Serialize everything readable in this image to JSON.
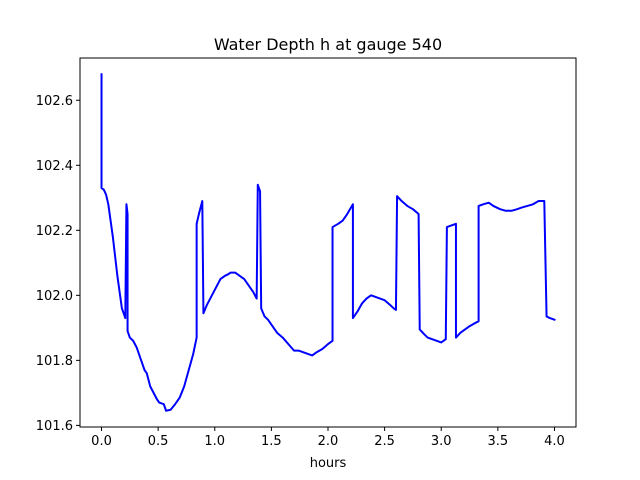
{
  "chart_data": {
    "type": "line",
    "title": "Water Depth h at gauge 540",
    "xlabel": "hours",
    "ylabel": "",
    "xlim": [
      -0.19,
      4.19
    ],
    "ylim": [
      101.595,
      102.73
    ],
    "grid": false,
    "legend": "none",
    "xticks": [
      {
        "value": 0.0,
        "label": "0.0"
      },
      {
        "value": 0.5,
        "label": "0.5"
      },
      {
        "value": 1.0,
        "label": "1.0"
      },
      {
        "value": 1.5,
        "label": "1.5"
      },
      {
        "value": 2.0,
        "label": "2.0"
      },
      {
        "value": 2.5,
        "label": "2.5"
      },
      {
        "value": 3.0,
        "label": "3.0"
      },
      {
        "value": 3.5,
        "label": "3.5"
      },
      {
        "value": 4.0,
        "label": "4.0"
      }
    ],
    "yticks": [
      {
        "value": 101.6,
        "label": "101.6"
      },
      {
        "value": 101.8,
        "label": "101.8"
      },
      {
        "value": 102.0,
        "label": "102.0"
      },
      {
        "value": 102.2,
        "label": "102.2"
      },
      {
        "value": 102.4,
        "label": "102.4"
      },
      {
        "value": 102.6,
        "label": "102.6"
      }
    ],
    "series": [
      {
        "color": "#0000ff",
        "points": [
          [
            0.0,
            102.68
          ],
          [
            0.0,
            102.33
          ],
          [
            0.02,
            102.325
          ],
          [
            0.04,
            102.31
          ],
          [
            0.06,
            102.28
          ],
          [
            0.08,
            102.23
          ],
          [
            0.1,
            102.18
          ],
          [
            0.12,
            102.12
          ],
          [
            0.14,
            102.06
          ],
          [
            0.16,
            102.01
          ],
          [
            0.18,
            101.96
          ],
          [
            0.21,
            101.93
          ],
          [
            0.22,
            102.28
          ],
          [
            0.23,
            102.25
          ],
          [
            0.23,
            101.89
          ],
          [
            0.25,
            101.87
          ],
          [
            0.28,
            101.86
          ],
          [
            0.31,
            101.84
          ],
          [
            0.33,
            101.82
          ],
          [
            0.36,
            101.79
          ],
          [
            0.38,
            101.77
          ],
          [
            0.4,
            101.76
          ],
          [
            0.43,
            101.72
          ],
          [
            0.46,
            101.7
          ],
          [
            0.49,
            101.68
          ],
          [
            0.51,
            101.67
          ],
          [
            0.55,
            101.665
          ],
          [
            0.57,
            101.645
          ],
          [
            0.61,
            101.648
          ],
          [
            0.65,
            101.665
          ],
          [
            0.69,
            101.685
          ],
          [
            0.73,
            101.72
          ],
          [
            0.77,
            101.77
          ],
          [
            0.81,
            101.82
          ],
          [
            0.84,
            101.87
          ],
          [
            0.84,
            102.22
          ],
          [
            0.86,
            102.25
          ],
          [
            0.89,
            102.29
          ],
          [
            0.9,
            101.945
          ],
          [
            0.93,
            101.97
          ],
          [
            0.96,
            101.99
          ],
          [
            0.99,
            102.01
          ],
          [
            1.02,
            102.03
          ],
          [
            1.05,
            102.05
          ],
          [
            1.09,
            102.06
          ],
          [
            1.12,
            102.065
          ],
          [
            1.14,
            102.07
          ],
          [
            1.18,
            102.07
          ],
          [
            1.22,
            102.06
          ],
          [
            1.26,
            102.05
          ],
          [
            1.3,
            102.03
          ],
          [
            1.34,
            102.01
          ],
          [
            1.37,
            101.99
          ],
          [
            1.38,
            102.34
          ],
          [
            1.4,
            102.32
          ],
          [
            1.41,
            101.96
          ],
          [
            1.44,
            101.935
          ],
          [
            1.47,
            101.925
          ],
          [
            1.5,
            101.91
          ],
          [
            1.55,
            101.885
          ],
          [
            1.6,
            101.87
          ],
          [
            1.65,
            101.85
          ],
          [
            1.7,
            101.83
          ],
          [
            1.74,
            101.83
          ],
          [
            1.78,
            101.825
          ],
          [
            1.82,
            101.82
          ],
          [
            1.86,
            101.815
          ],
          [
            1.9,
            101.825
          ],
          [
            1.95,
            101.835
          ],
          [
            2.0,
            101.85
          ],
          [
            2.04,
            101.86
          ],
          [
            2.04,
            102.21
          ],
          [
            2.09,
            102.22
          ],
          [
            2.13,
            102.23
          ],
          [
            2.17,
            102.25
          ],
          [
            2.22,
            102.28
          ],
          [
            2.22,
            101.93
          ],
          [
            2.26,
            101.95
          ],
          [
            2.3,
            101.975
          ],
          [
            2.34,
            101.99
          ],
          [
            2.38,
            102.0
          ],
          [
            2.42,
            101.995
          ],
          [
            2.46,
            101.99
          ],
          [
            2.5,
            101.985
          ],
          [
            2.55,
            101.97
          ],
          [
            2.58,
            101.96
          ],
          [
            2.6,
            101.955
          ],
          [
            2.61,
            102.305
          ],
          [
            2.65,
            102.29
          ],
          [
            2.7,
            102.275
          ],
          [
            2.75,
            102.265
          ],
          [
            2.8,
            102.25
          ],
          [
            2.81,
            101.895
          ],
          [
            2.85,
            101.88
          ],
          [
            2.88,
            101.87
          ],
          [
            2.92,
            101.865
          ],
          [
            2.96,
            101.86
          ],
          [
            3.0,
            101.855
          ],
          [
            3.04,
            101.865
          ],
          [
            3.05,
            102.21
          ],
          [
            3.09,
            102.215
          ],
          [
            3.13,
            102.22
          ],
          [
            3.13,
            101.87
          ],
          [
            3.17,
            101.885
          ],
          [
            3.21,
            101.895
          ],
          [
            3.25,
            101.905
          ],
          [
            3.3,
            101.915
          ],
          [
            3.33,
            101.92
          ],
          [
            3.33,
            102.275
          ],
          [
            3.37,
            102.28
          ],
          [
            3.42,
            102.285
          ],
          [
            3.46,
            102.275
          ],
          [
            3.52,
            102.265
          ],
          [
            3.57,
            102.26
          ],
          [
            3.62,
            102.26
          ],
          [
            3.67,
            102.265
          ],
          [
            3.71,
            102.27
          ],
          [
            3.76,
            102.275
          ],
          [
            3.81,
            102.28
          ],
          [
            3.86,
            102.29
          ],
          [
            3.91,
            102.29
          ],
          [
            3.93,
            101.935
          ],
          [
            3.96,
            101.93
          ],
          [
            4.0,
            101.925
          ]
        ]
      }
    ]
  }
}
